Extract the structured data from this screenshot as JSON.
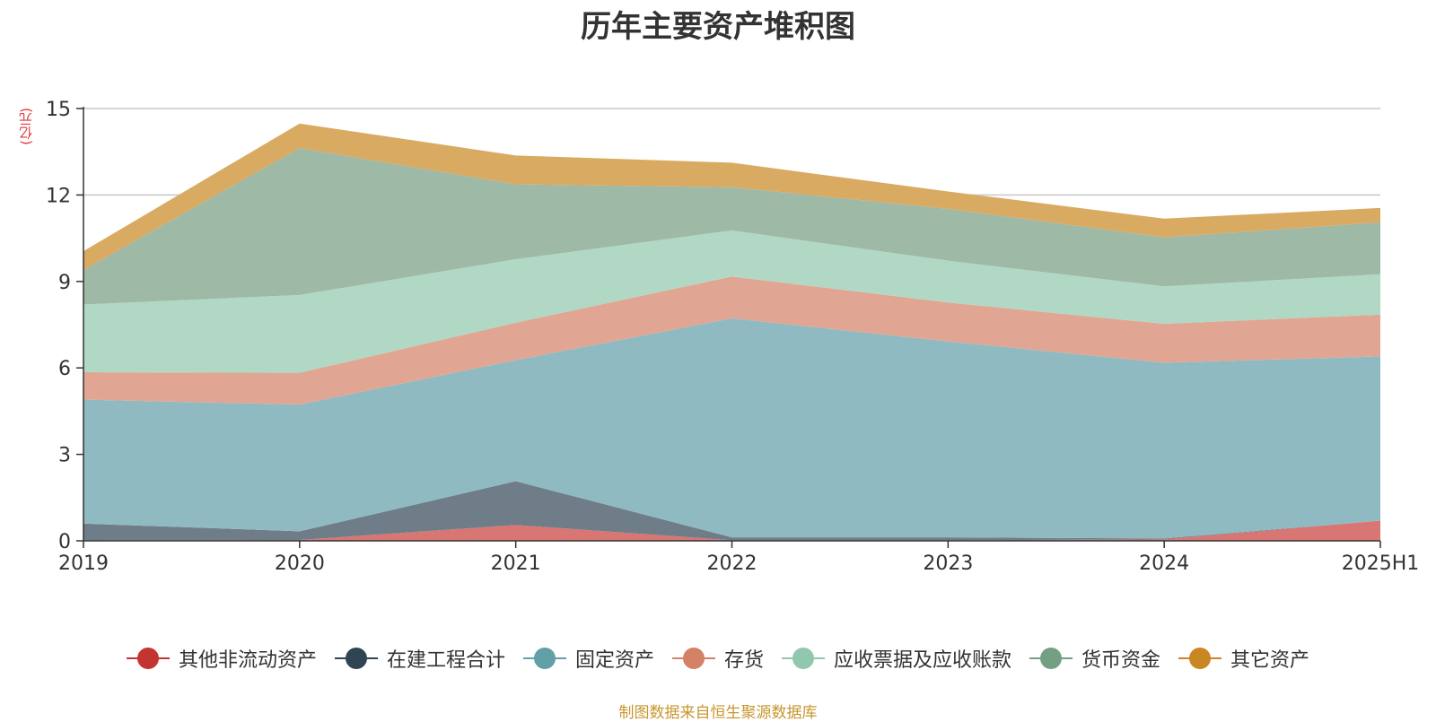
{
  "chart_data": {
    "type": "area",
    "stacked": true,
    "title": "历年主要资产堆积图",
    "ylabel": "亿元",
    "categories": [
      "2019",
      "2020",
      "2021",
      "2022",
      "2023",
      "2024",
      "2025H1"
    ],
    "ylim": [
      0,
      15
    ],
    "yticks": [
      0,
      3,
      6,
      9,
      12,
      15
    ],
    "grid": true,
    "legend_position": "bottom",
    "series": [
      {
        "name": "其他非流动资产",
        "color": "#c23531",
        "area_color": "#d77673",
        "values": [
          0.02,
          0.03,
          0.55,
          0.02,
          0.02,
          0.05,
          0.7
        ]
      },
      {
        "name": "在建工程合计",
        "color": "#2f4554",
        "area_color": "#6f7d88",
        "values": [
          0.58,
          0.3,
          1.52,
          0.1,
          0.1,
          0.03,
          0.0
        ]
      },
      {
        "name": "固定资产",
        "color": "#61a0a8",
        "area_color": "#90bac1",
        "values": [
          4.3,
          4.4,
          4.2,
          7.6,
          6.8,
          6.1,
          5.7
        ]
      },
      {
        "name": "存货",
        "color": "#d48265",
        "area_color": "#e0a693",
        "values": [
          0.95,
          1.1,
          1.3,
          1.45,
          1.35,
          1.35,
          1.45
        ]
      },
      {
        "name": "应收票据及应收账款",
        "color": "#91c7ae",
        "area_color": "#b1d8c5",
        "values": [
          2.35,
          2.7,
          2.2,
          1.6,
          1.45,
          1.3,
          1.4
        ]
      },
      {
        "name": "货币资金",
        "color": "#749f83",
        "area_color": "#9eb9a6",
        "values": [
          1.2,
          5.1,
          2.6,
          1.5,
          1.8,
          1.7,
          1.8
        ]
      },
      {
        "name": "其它资产",
        "color": "#ca8622",
        "area_color": "#d9aa62",
        "values": [
          0.65,
          0.85,
          1.0,
          0.85,
          0.6,
          0.65,
          0.5
        ]
      }
    ]
  },
  "source_text": "制图数据来自恒生聚源数据库"
}
